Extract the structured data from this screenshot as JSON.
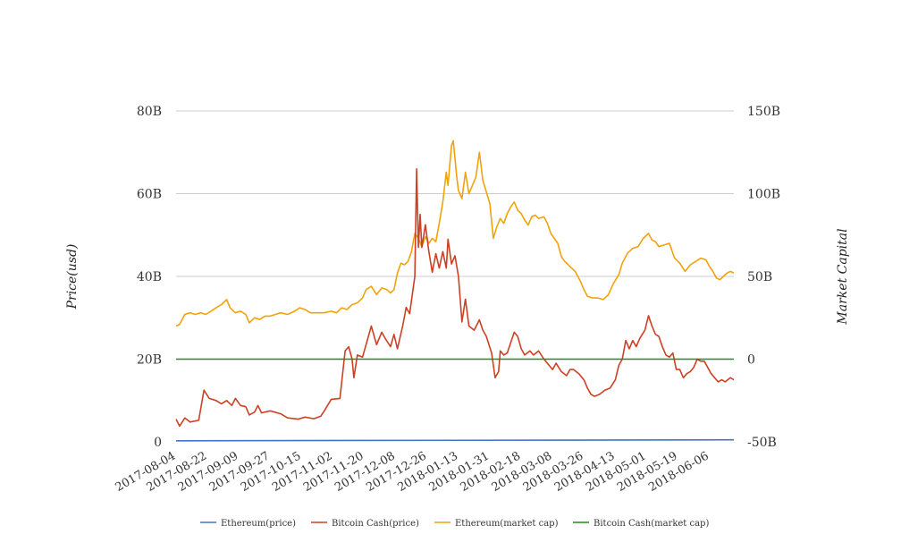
{
  "chart_data": {
    "type": "line",
    "title": "",
    "ylabel_left": "Price(usd)",
    "ylabel_right": "Market Capital",
    "y_left_ticks": [
      "0",
      "20B",
      "40B",
      "60B",
      "80B"
    ],
    "y_left_range": [
      0,
      80
    ],
    "y_right_ticks": [
      "-50B",
      "0",
      "50B",
      "100B",
      "150B"
    ],
    "y_right_range": [
      -50,
      150
    ],
    "x_ticks": [
      "2017-08-04",
      "2017-08-22",
      "2017-09-09",
      "2017-09-27",
      "2017-10-15",
      "2017-11-02",
      "2017-11-20",
      "2017-12-08",
      "2017-12-26",
      "2018-01-13",
      "2018-01-31",
      "2018-02-18",
      "2018-03-08",
      "2018-03-26",
      "2018-04-13",
      "2018-05-01",
      "2018-05-19",
      "2018-06-06"
    ],
    "x_range": [
      "2017-08-04",
      "2018-06-20"
    ],
    "grid": true,
    "legend_position": "bottom",
    "series": [
      {
        "name": "Ethereum(price)",
        "axis": "left",
        "color": "#4472c4",
        "points": [
          [
            "2017-08-04",
            0.25
          ],
          [
            "2018-06-20",
            0.5
          ]
        ]
      },
      {
        "name": "Bitcoin Cash(price)",
        "axis": "left",
        "color": "#cc4125",
        "points": [
          [
            "2017-08-04",
            5.5
          ],
          [
            "2017-08-06",
            3.8
          ],
          [
            "2017-08-09",
            5.8
          ],
          [
            "2017-08-12",
            4.8
          ],
          [
            "2017-08-17",
            5.2
          ],
          [
            "2017-08-20",
            12.5
          ],
          [
            "2017-08-23",
            10.5
          ],
          [
            "2017-08-27",
            10
          ],
          [
            "2017-08-30",
            9.2
          ],
          [
            "2017-09-02",
            10
          ],
          [
            "2017-09-05",
            8.8
          ],
          [
            "2017-09-07",
            10.5
          ],
          [
            "2017-09-10",
            8.8
          ],
          [
            "2017-09-13",
            8.5
          ],
          [
            "2017-09-15",
            6.5
          ],
          [
            "2017-09-18",
            7.2
          ],
          [
            "2017-09-20",
            8.8
          ],
          [
            "2017-09-22",
            7
          ],
          [
            "2017-09-27",
            7.5
          ],
          [
            "2017-10-03",
            6.8
          ],
          [
            "2017-10-07",
            5.8
          ],
          [
            "2017-10-13",
            5.5
          ],
          [
            "2017-10-17",
            6
          ],
          [
            "2017-10-22",
            5.6
          ],
          [
            "2017-10-26",
            6.2
          ],
          [
            "2017-10-28",
            7.5
          ],
          [
            "2017-11-01",
            10.3
          ],
          [
            "2017-11-06",
            10.5
          ],
          [
            "2017-11-09",
            22
          ],
          [
            "2017-11-11",
            23
          ],
          [
            "2017-11-13",
            20
          ],
          [
            "2017-11-14",
            15.5
          ],
          [
            "2017-11-16",
            21
          ],
          [
            "2017-11-19",
            20.5
          ],
          [
            "2017-11-22",
            25
          ],
          [
            "2017-11-24",
            28
          ],
          [
            "2017-11-27",
            23.5
          ],
          [
            "2017-11-30",
            26.5
          ],
          [
            "2017-12-02",
            25
          ],
          [
            "2017-12-05",
            23
          ],
          [
            "2017-12-07",
            26
          ],
          [
            "2017-12-09",
            22.5
          ],
          [
            "2017-12-12",
            28
          ],
          [
            "2017-12-14",
            32.5
          ],
          [
            "2017-12-16",
            31
          ],
          [
            "2017-12-19",
            40
          ],
          [
            "2017-12-20",
            66
          ],
          [
            "2017-12-21",
            47
          ],
          [
            "2017-12-22",
            55
          ],
          [
            "2017-12-23",
            47
          ],
          [
            "2017-12-25",
            52.5
          ],
          [
            "2017-12-27",
            46
          ],
          [
            "2017-12-29",
            41
          ],
          [
            "2017-12-31",
            45.5
          ],
          [
            "2018-01-02",
            42
          ],
          [
            "2018-01-04",
            46
          ],
          [
            "2018-01-06",
            42
          ],
          [
            "2018-01-07",
            49
          ],
          [
            "2018-01-09",
            43
          ],
          [
            "2018-01-11",
            45
          ],
          [
            "2018-01-13",
            40
          ],
          [
            "2018-01-15",
            29
          ],
          [
            "2018-01-17",
            34.5
          ],
          [
            "2018-01-19",
            28
          ],
          [
            "2018-01-22",
            27
          ],
          [
            "2018-01-25",
            29.5
          ],
          [
            "2018-01-27",
            27
          ],
          [
            "2018-01-29",
            25.5
          ],
          [
            "2018-02-01",
            21.5
          ],
          [
            "2018-02-03",
            15.5
          ],
          [
            "2018-02-05",
            17
          ],
          [
            "2018-02-06",
            22
          ],
          [
            "2018-02-08",
            21
          ],
          [
            "2018-02-10",
            21.5
          ],
          [
            "2018-02-12",
            24
          ],
          [
            "2018-02-14",
            26.5
          ],
          [
            "2018-02-16",
            25.5
          ],
          [
            "2018-02-18",
            22.5
          ],
          [
            "2018-02-20",
            21
          ],
          [
            "2018-02-23",
            22
          ],
          [
            "2018-02-25",
            21
          ],
          [
            "2018-02-28",
            22
          ],
          [
            "2018-03-03",
            20
          ],
          [
            "2018-03-05",
            19
          ],
          [
            "2018-03-08",
            17.5
          ],
          [
            "2018-03-10",
            19
          ],
          [
            "2018-03-13",
            17
          ],
          [
            "2018-03-16",
            16
          ],
          [
            "2018-03-18",
            17.5
          ],
          [
            "2018-03-20",
            17.5
          ],
          [
            "2018-03-23",
            16.5
          ],
          [
            "2018-03-26",
            15
          ],
          [
            "2018-03-28",
            13
          ],
          [
            "2018-03-30",
            11.5
          ],
          [
            "2018-04-01",
            11
          ],
          [
            "2018-04-04",
            11.5
          ],
          [
            "2018-04-07",
            12.5
          ],
          [
            "2018-04-10",
            13
          ],
          [
            "2018-04-13",
            15
          ],
          [
            "2018-04-15",
            18.5
          ],
          [
            "2018-04-17",
            20
          ],
          [
            "2018-04-19",
            24.5
          ],
          [
            "2018-04-21",
            22.5
          ],
          [
            "2018-04-23",
            24.5
          ],
          [
            "2018-04-25",
            23
          ],
          [
            "2018-04-27",
            25
          ],
          [
            "2018-04-30",
            27
          ],
          [
            "2018-05-02",
            30.5
          ],
          [
            "2018-05-04",
            28
          ],
          [
            "2018-05-06",
            26
          ],
          [
            "2018-05-08",
            25.5
          ],
          [
            "2018-05-10",
            23
          ],
          [
            "2018-05-12",
            21
          ],
          [
            "2018-05-14",
            20.5
          ],
          [
            "2018-05-16",
            21.5
          ],
          [
            "2018-05-18",
            17.5
          ],
          [
            "2018-05-20",
            17.5
          ],
          [
            "2018-05-22",
            15.5
          ],
          [
            "2018-05-24",
            16.5
          ],
          [
            "2018-05-26",
            17
          ],
          [
            "2018-05-28",
            18
          ],
          [
            "2018-05-30",
            20
          ],
          [
            "2018-06-01",
            19.5
          ],
          [
            "2018-06-03",
            19.5
          ],
          [
            "2018-06-05",
            18
          ],
          [
            "2018-06-07",
            16.5
          ],
          [
            "2018-06-09",
            15.5
          ],
          [
            "2018-06-11",
            14.5
          ],
          [
            "2018-06-13",
            15
          ],
          [
            "2018-06-15",
            14.5
          ],
          [
            "2018-06-18",
            15.5
          ],
          [
            "2018-06-20",
            15
          ]
        ]
      },
      {
        "name": "Ethereum(market cap)",
        "axis": "right",
        "color": "#f0a30a",
        "points": [
          [
            "2017-08-04",
            20
          ],
          [
            "2017-08-06",
            21
          ],
          [
            "2017-08-09",
            27
          ],
          [
            "2017-08-12",
            28
          ],
          [
            "2017-08-15",
            27
          ],
          [
            "2017-08-18",
            28
          ],
          [
            "2017-08-21",
            27
          ],
          [
            "2017-08-24",
            29
          ],
          [
            "2017-08-27",
            31
          ],
          [
            "2017-08-30",
            33
          ],
          [
            "2017-09-02",
            36
          ],
          [
            "2017-09-04",
            31
          ],
          [
            "2017-09-07",
            28
          ],
          [
            "2017-09-10",
            29
          ],
          [
            "2017-09-13",
            27
          ],
          [
            "2017-09-15",
            22
          ],
          [
            "2017-09-18",
            25
          ],
          [
            "2017-09-21",
            24
          ],
          [
            "2017-09-24",
            26
          ],
          [
            "2017-09-27",
            26
          ],
          [
            "2017-09-30",
            27
          ],
          [
            "2017-10-03",
            28
          ],
          [
            "2017-10-07",
            27
          ],
          [
            "2017-10-11",
            29
          ],
          [
            "2017-10-14",
            31
          ],
          [
            "2017-10-17",
            30
          ],
          [
            "2017-10-20",
            28
          ],
          [
            "2017-10-25",
            28
          ],
          [
            "2017-10-28",
            28
          ],
          [
            "2017-11-01",
            29
          ],
          [
            "2017-11-04",
            28
          ],
          [
            "2017-11-07",
            31
          ],
          [
            "2017-11-10",
            30
          ],
          [
            "2017-11-13",
            33
          ],
          [
            "2017-11-16",
            34
          ],
          [
            "2017-11-19",
            37
          ],
          [
            "2017-11-21",
            42
          ],
          [
            "2017-11-24",
            44
          ],
          [
            "2017-11-27",
            39
          ],
          [
            "2017-11-30",
            43
          ],
          [
            "2017-12-03",
            42
          ],
          [
            "2017-12-05",
            40
          ],
          [
            "2017-12-07",
            42
          ],
          [
            "2017-12-09",
            52
          ],
          [
            "2017-12-11",
            58
          ],
          [
            "2017-12-13",
            57
          ],
          [
            "2017-12-15",
            59
          ],
          [
            "2017-12-17",
            65
          ],
          [
            "2017-12-19",
            76
          ],
          [
            "2017-12-21",
            73
          ],
          [
            "2017-12-23",
            68
          ],
          [
            "2017-12-25",
            74
          ],
          [
            "2017-12-27",
            70
          ],
          [
            "2017-12-29",
            73
          ],
          [
            "2017-12-31",
            71
          ],
          [
            "2018-01-02",
            82
          ],
          [
            "2018-01-04",
            95
          ],
          [
            "2018-01-06",
            113
          ],
          [
            "2018-01-07",
            105
          ],
          [
            "2018-01-09",
            129
          ],
          [
            "2018-01-10",
            132
          ],
          [
            "2018-01-12",
            110
          ],
          [
            "2018-01-13",
            102
          ],
          [
            "2018-01-15",
            97
          ],
          [
            "2018-01-17",
            113
          ],
          [
            "2018-01-19",
            100
          ],
          [
            "2018-01-21",
            105
          ],
          [
            "2018-01-23",
            110
          ],
          [
            "2018-01-25",
            125
          ],
          [
            "2018-01-27",
            108
          ],
          [
            "2018-01-29",
            101
          ],
          [
            "2018-01-31",
            94
          ],
          [
            "2018-02-02",
            73
          ],
          [
            "2018-02-04",
            80
          ],
          [
            "2018-02-06",
            85
          ],
          [
            "2018-02-08",
            82
          ],
          [
            "2018-02-10",
            88
          ],
          [
            "2018-02-12",
            92
          ],
          [
            "2018-02-14",
            95
          ],
          [
            "2018-02-16",
            90
          ],
          [
            "2018-02-18",
            88
          ],
          [
            "2018-02-20",
            84
          ],
          [
            "2018-02-22",
            81
          ],
          [
            "2018-02-24",
            86
          ],
          [
            "2018-02-26",
            87
          ],
          [
            "2018-02-28",
            85
          ],
          [
            "2018-03-03",
            86
          ],
          [
            "2018-03-05",
            82
          ],
          [
            "2018-03-07",
            76
          ],
          [
            "2018-03-09",
            73
          ],
          [
            "2018-03-11",
            70
          ],
          [
            "2018-03-13",
            62
          ],
          [
            "2018-03-15",
            59
          ],
          [
            "2018-03-18",
            56
          ],
          [
            "2018-03-21",
            53
          ],
          [
            "2018-03-24",
            47
          ],
          [
            "2018-03-26",
            42
          ],
          [
            "2018-03-28",
            38
          ],
          [
            "2018-03-31",
            37
          ],
          [
            "2018-04-03",
            37
          ],
          [
            "2018-04-06",
            36
          ],
          [
            "2018-04-09",
            39
          ],
          [
            "2018-04-12",
            46
          ],
          [
            "2018-04-15",
            51
          ],
          [
            "2018-04-17",
            58
          ],
          [
            "2018-04-20",
            64
          ],
          [
            "2018-04-23",
            67
          ],
          [
            "2018-04-26",
            68
          ],
          [
            "2018-04-29",
            73
          ],
          [
            "2018-05-02",
            76
          ],
          [
            "2018-05-04",
            72
          ],
          [
            "2018-05-06",
            71
          ],
          [
            "2018-05-08",
            68
          ],
          [
            "2018-05-11",
            69
          ],
          [
            "2018-05-14",
            70
          ],
          [
            "2018-05-17",
            61
          ],
          [
            "2018-05-20",
            58
          ],
          [
            "2018-05-23",
            53
          ],
          [
            "2018-05-26",
            57
          ],
          [
            "2018-05-29",
            59
          ],
          [
            "2018-06-01",
            61
          ],
          [
            "2018-06-04",
            60
          ],
          [
            "2018-06-06",
            56
          ],
          [
            "2018-06-08",
            53
          ],
          [
            "2018-06-10",
            49
          ],
          [
            "2018-06-12",
            48
          ],
          [
            "2018-06-14",
            50
          ],
          [
            "2018-06-16",
            52
          ],
          [
            "2018-06-18",
            53
          ],
          [
            "2018-06-20",
            52
          ]
        ]
      },
      {
        "name": "Bitcoin Cash(market cap)",
        "axis": "right",
        "color": "#1e8e1e",
        "points": [
          [
            "2017-08-04",
            0
          ],
          [
            "2018-06-20",
            0
          ]
        ]
      }
    ]
  }
}
